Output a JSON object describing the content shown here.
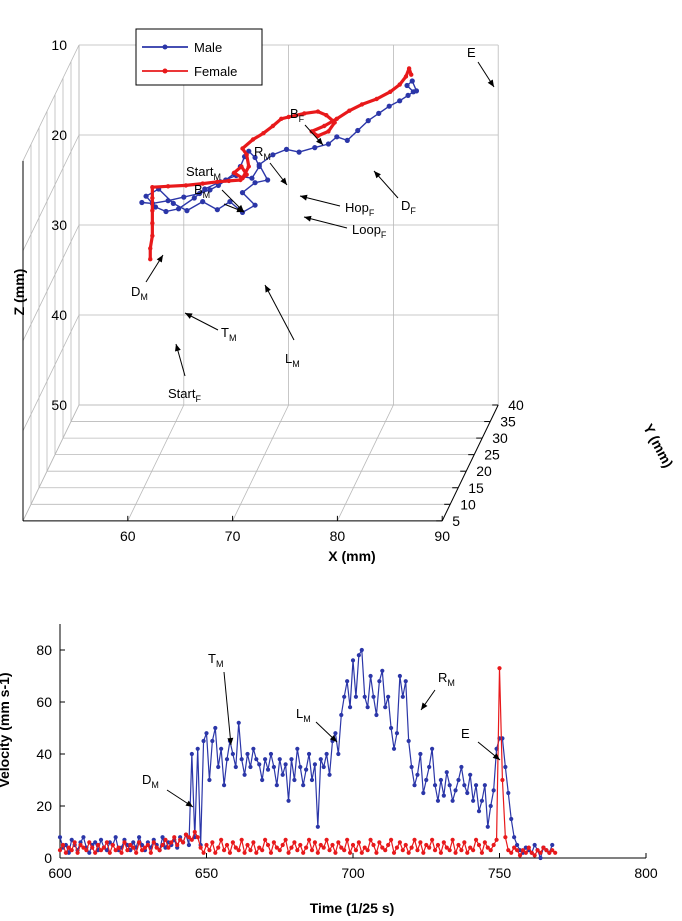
{
  "colors": {
    "male": "#2b36a8",
    "female": "#e8191b"
  },
  "chart_data": [
    {
      "type": "line",
      "subtype": "3d-trajectory",
      "xlabel": "X (mm)",
      "ylabel": "Y (mm)",
      "zlabel": "Z (mm)",
      "xlim": [
        50,
        90
      ],
      "ylim": [
        5,
        40
      ],
      "zlim": [
        10,
        50
      ],
      "z_reversed": true,
      "xticks": [
        "60",
        "70",
        "80",
        "90"
      ],
      "yticks": [
        "5",
        "10",
        "15",
        "20",
        "25",
        "30",
        "35",
        "40"
      ],
      "zticks": [
        "10",
        "20",
        "30",
        "40",
        "50"
      ],
      "grid": true,
      "legend": {
        "position": "top-left",
        "entries": [
          "Male",
          "Female"
        ]
      },
      "series": [
        {
          "name": "Male",
          "color": "#2b36a8",
          "note": "points given as projected (x, z) at the back plane",
          "points": [
            [
              56.0,
              27.5
            ],
            [
              57.0,
              27.6
            ],
            [
              58.5,
              27.3
            ],
            [
              60.0,
              26.9
            ],
            [
              61.5,
              26.5
            ],
            [
              62.5,
              26.1
            ],
            [
              63.3,
              25.6
            ],
            [
              64.0,
              25.0
            ],
            [
              64.8,
              24.3
            ],
            [
              65.4,
              23.5
            ],
            [
              65.8,
              22.4
            ],
            [
              66.2,
              21.8
            ],
            [
              66.8,
              22.5
            ],
            [
              67.2,
              23.5
            ],
            [
              66.5,
              24.8
            ],
            [
              65.0,
              24.5
            ],
            [
              63.5,
              25.2
            ],
            [
              62.0,
              26.0
            ],
            [
              61.0,
              27.0
            ],
            [
              59.5,
              28.2
            ],
            [
              58.3,
              28.5
            ],
            [
              57.3,
              28.0
            ],
            [
              56.4,
              26.8
            ],
            [
              57.6,
              26.0
            ],
            [
              59.0,
              27.6
            ],
            [
              60.3,
              28.4
            ],
            [
              61.8,
              27.4
            ],
            [
              63.2,
              28.3
            ],
            [
              64.4,
              27.4
            ],
            [
              65.6,
              28.6
            ],
            [
              66.8,
              27.8
            ],
            [
              65.6,
              26.4
            ],
            [
              66.8,
              25.3
            ],
            [
              68.0,
              25.0
            ],
            [
              67.2,
              23.3
            ],
            [
              68.5,
              22.2
            ],
            [
              69.8,
              21.6
            ],
            [
              71.0,
              21.9
            ],
            [
              72.5,
              21.4
            ],
            [
              73.8,
              21.0
            ],
            [
              74.6,
              20.2
            ],
            [
              75.6,
              20.6
            ],
            [
              76.6,
              19.5
            ],
            [
              77.6,
              18.4
            ],
            [
              78.6,
              17.6
            ],
            [
              79.6,
              16.8
            ],
            [
              80.6,
              16.2
            ],
            [
              81.4,
              15.6
            ],
            [
              81.9,
              15.2
            ],
            [
              81.3,
              14.5
            ],
            [
              81.8,
              14.0
            ],
            [
              82.2,
              15.1
            ]
          ]
        },
        {
          "name": "Female",
          "color": "#e8191b",
          "note": "points given as projected (x, z) at the back plane",
          "points": [
            [
              56.8,
              33.8
            ],
            [
              56.8,
              32.6
            ],
            [
              57.0,
              31.2
            ],
            [
              57.0,
              29.8
            ],
            [
              57.0,
              28.4
            ],
            [
              57.0,
              27.0
            ],
            [
              57.0,
              25.8
            ],
            [
              58.5,
              25.7
            ],
            [
              60.2,
              25.6
            ],
            [
              61.8,
              25.4
            ],
            [
              63.2,
              25.2
            ],
            [
              64.3,
              25.1
            ],
            [
              65.4,
              25.0
            ],
            [
              66.0,
              24.4
            ],
            [
              65.5,
              23.5
            ],
            [
              64.8,
              24.2
            ],
            [
              65.6,
              24.8
            ],
            [
              66.2,
              23.5
            ],
            [
              66.0,
              22.2
            ],
            [
              65.6,
              21.5
            ],
            [
              66.6,
              20.5
            ],
            [
              67.6,
              19.8
            ],
            [
              68.5,
              19.0
            ],
            [
              69.3,
              18.2
            ],
            [
              70.0,
              18.0
            ],
            [
              71.5,
              17.6
            ],
            [
              72.8,
              17.4
            ],
            [
              73.6,
              17.8
            ],
            [
              74.4,
              18.6
            ],
            [
              73.8,
              19.6
            ],
            [
              72.8,
              20.1
            ],
            [
              72.2,
              19.6
            ],
            [
              73.4,
              19.0
            ],
            [
              74.6,
              18.2
            ],
            [
              75.8,
              17.3
            ],
            [
              77.0,
              16.6
            ],
            [
              78.4,
              16.0
            ],
            [
              79.7,
              15.2
            ],
            [
              80.6,
              14.4
            ],
            [
              81.2,
              13.5
            ],
            [
              81.5,
              12.6
            ],
            [
              81.7,
              13.3
            ]
          ]
        }
      ],
      "annotations": [
        {
          "text": "E",
          "sub": ""
        },
        {
          "text": "B",
          "sub": "F"
        },
        {
          "text": "R",
          "sub": "M"
        },
        {
          "text": "Start",
          "sub": "M"
        },
        {
          "text": "B",
          "sub": "M"
        },
        {
          "text": "Hop",
          "sub": "F"
        },
        {
          "text": "D",
          "sub": "F"
        },
        {
          "text": "Loop",
          "sub": "F"
        },
        {
          "text": "D",
          "sub": "M"
        },
        {
          "text": "T",
          "sub": "M"
        },
        {
          "text": "L",
          "sub": "M"
        },
        {
          "text": "Start",
          "sub": "F"
        }
      ]
    },
    {
      "type": "line",
      "xlabel": "Time (1/25 s)",
      "ylabel": "Velocity (mm s-1)",
      "xlim": [
        600,
        800
      ],
      "ylim": [
        0,
        90
      ],
      "xticks": [
        "600",
        "650",
        "700",
        "750",
        "800"
      ],
      "yticks": [
        "0",
        "20",
        "40",
        "60",
        "80"
      ],
      "grid": false,
      "series": [
        {
          "name": "Male",
          "color": "#2b36a8",
          "x_start": 600,
          "x_step": 1,
          "values": [
            8,
            4,
            5,
            2,
            7,
            5,
            3,
            6,
            8,
            4,
            2,
            5,
            6,
            3,
            7,
            4,
            3,
            6,
            5,
            8,
            3,
            4,
            7,
            5,
            3,
            6,
            4,
            8,
            5,
            3,
            6,
            4,
            7,
            5,
            3,
            8,
            4,
            6,
            5,
            7,
            4,
            8,
            6,
            9,
            5,
            40,
            8,
            42,
            5,
            45,
            48,
            30,
            45,
            50,
            35,
            42,
            28,
            38,
            45,
            40,
            35,
            52,
            38,
            32,
            40,
            35,
            42,
            38,
            36,
            30,
            38,
            34,
            40,
            35,
            28,
            38,
            32,
            36,
            22,
            38,
            30,
            42,
            35,
            28,
            34,
            40,
            30,
            36,
            12,
            38,
            35,
            40,
            32,
            45,
            48,
            40,
            55,
            62,
            68,
            58,
            76,
            62,
            78,
            80,
            62,
            58,
            70,
            62,
            55,
            68,
            72,
            58,
            62,
            50,
            42,
            48,
            70,
            62,
            68,
            45,
            35,
            28,
            32,
            40,
            25,
            30,
            35,
            42,
            28,
            22,
            30,
            24,
            33,
            28,
            22,
            26,
            30,
            35,
            28,
            25,
            32,
            22,
            28,
            18,
            22,
            28,
            12,
            20,
            26,
            42,
            46,
            46,
            35,
            25,
            15,
            8,
            5,
            3,
            2,
            4,
            3,
            2,
            5,
            3,
            0,
            4,
            3,
            2,
            5
          ]
        },
        {
          "name": "Female",
          "color": "#e8191b",
          "x_start": 600,
          "x_step": 1,
          "values": [
            3,
            5,
            2,
            4,
            3,
            6,
            2,
            5,
            4,
            3,
            6,
            4,
            2,
            5,
            3,
            4,
            6,
            2,
            5,
            3,
            4,
            2,
            6,
            3,
            5,
            4,
            2,
            6,
            3,
            4,
            5,
            2,
            6,
            4,
            3,
            5,
            7,
            4,
            6,
            8,
            5,
            7,
            6,
            9,
            8,
            7,
            10,
            8,
            4,
            2,
            5,
            3,
            6,
            2,
            4,
            7,
            3,
            5,
            2,
            6,
            4,
            3,
            7,
            2,
            5,
            3,
            6,
            2,
            4,
            3,
            7,
            5,
            2,
            6,
            4,
            3,
            5,
            7,
            2,
            4,
            6,
            3,
            5,
            2,
            4,
            7,
            3,
            6,
            2,
            5,
            4,
            7,
            3,
            5,
            2,
            6,
            4,
            3,
            7,
            2,
            5,
            3,
            6,
            2,
            4,
            3,
            7,
            5,
            2,
            6,
            4,
            3,
            5,
            7,
            2,
            4,
            6,
            3,
            5,
            2,
            4,
            7,
            3,
            6,
            2,
            5,
            4,
            7,
            3,
            5,
            2,
            6,
            4,
            3,
            7,
            2,
            5,
            3,
            6,
            2,
            4,
            3,
            7,
            5,
            2,
            6,
            4,
            3,
            5,
            7,
            73,
            30,
            8,
            3,
            2,
            4,
            3,
            1,
            3,
            2,
            4,
            2,
            1,
            3,
            2,
            4,
            3,
            2,
            3,
            2
          ]
        }
      ],
      "annotations": [
        {
          "text": "T",
          "sub": "M"
        },
        {
          "text": "L",
          "sub": "M"
        },
        {
          "text": "R",
          "sub": "M"
        },
        {
          "text": "E",
          "sub": ""
        },
        {
          "text": "D",
          "sub": "M"
        }
      ]
    }
  ]
}
